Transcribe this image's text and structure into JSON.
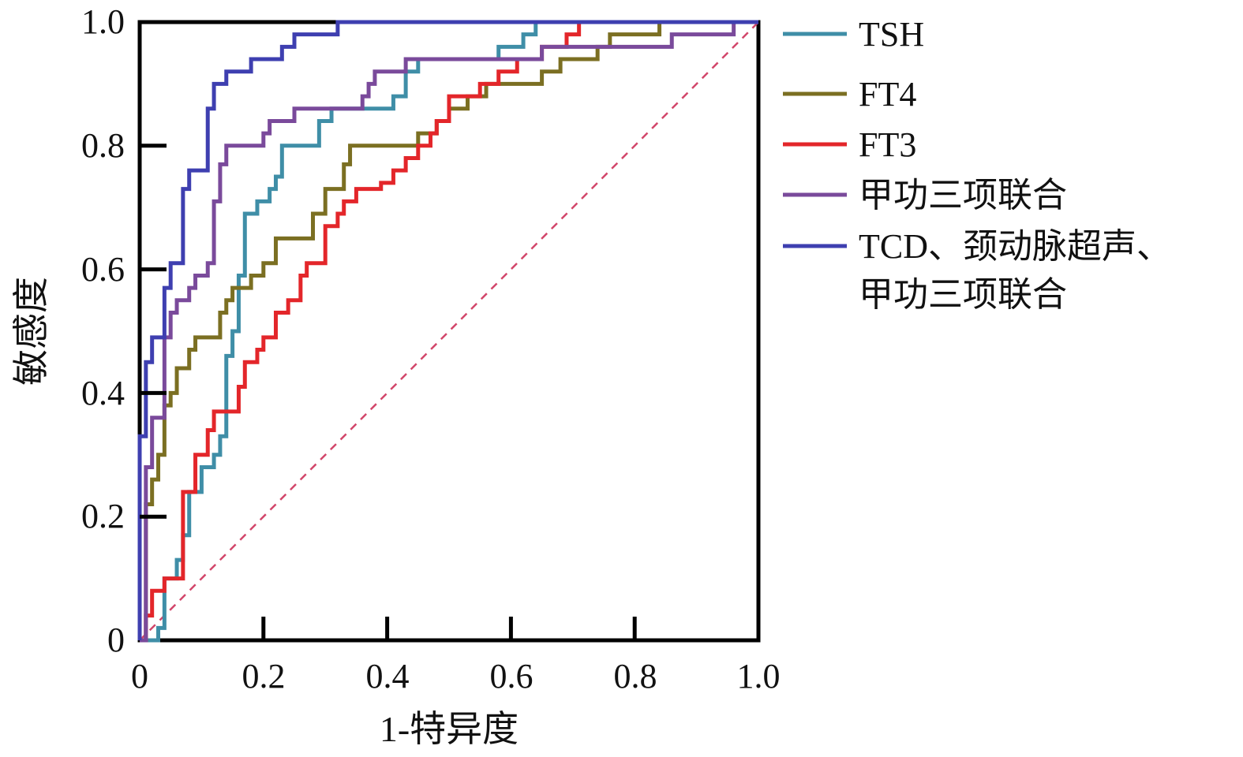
{
  "chart_data": {
    "type": "line",
    "xlabel": "1-特异度",
    "ylabel": "敏感度",
    "xlim": [
      0,
      1.0
    ],
    "ylim": [
      0,
      1.0
    ],
    "x_ticks": [
      "0",
      "0.2",
      "0.4",
      "0.6",
      "0.8",
      "1.0"
    ],
    "y_ticks": [
      "0",
      "0.2",
      "0.4",
      "0.6",
      "0.8",
      "1.0"
    ],
    "grid": false,
    "legend_position": "right",
    "reference_line": {
      "points": [
        [
          0,
          0
        ],
        [
          1,
          1
        ]
      ],
      "style": "dashed",
      "color": "#d2476b"
    },
    "series": [
      {
        "name": "TSH",
        "color": "#3f8ea7",
        "points": [
          [
            0,
            0
          ],
          [
            0.03,
            0
          ],
          [
            0.03,
            0.02
          ],
          [
            0.04,
            0.02
          ],
          [
            0.04,
            0.1
          ],
          [
            0.06,
            0.1
          ],
          [
            0.06,
            0.13
          ],
          [
            0.07,
            0.13
          ],
          [
            0.07,
            0.17
          ],
          [
            0.08,
            0.17
          ],
          [
            0.08,
            0.24
          ],
          [
            0.1,
            0.24
          ],
          [
            0.1,
            0.28
          ],
          [
            0.12,
            0.28
          ],
          [
            0.12,
            0.3
          ],
          [
            0.13,
            0.3
          ],
          [
            0.13,
            0.33
          ],
          [
            0.14,
            0.33
          ],
          [
            0.14,
            0.46
          ],
          [
            0.15,
            0.46
          ],
          [
            0.15,
            0.5
          ],
          [
            0.16,
            0.5
          ],
          [
            0.16,
            0.59
          ],
          [
            0.17,
            0.59
          ],
          [
            0.17,
            0.69
          ],
          [
            0.19,
            0.69
          ],
          [
            0.19,
            0.71
          ],
          [
            0.21,
            0.71
          ],
          [
            0.21,
            0.73
          ],
          [
            0.22,
            0.73
          ],
          [
            0.22,
            0.75
          ],
          [
            0.23,
            0.75
          ],
          [
            0.23,
            0.8
          ],
          [
            0.29,
            0.8
          ],
          [
            0.29,
            0.84
          ],
          [
            0.31,
            0.84
          ],
          [
            0.31,
            0.86
          ],
          [
            0.41,
            0.86
          ],
          [
            0.41,
            0.88
          ],
          [
            0.43,
            0.88
          ],
          [
            0.43,
            0.92
          ],
          [
            0.45,
            0.92
          ],
          [
            0.45,
            0.94
          ],
          [
            0.58,
            0.94
          ],
          [
            0.58,
            0.96
          ],
          [
            0.62,
            0.96
          ],
          [
            0.62,
            0.98
          ],
          [
            0.64,
            0.98
          ],
          [
            0.64,
            1.0
          ],
          [
            1.0,
            1.0
          ]
        ]
      },
      {
        "name": "FT4",
        "color": "#7b6f22",
        "points": [
          [
            0,
            0
          ],
          [
            0.01,
            0
          ],
          [
            0.01,
            0.22
          ],
          [
            0.02,
            0.22
          ],
          [
            0.02,
            0.26
          ],
          [
            0.03,
            0.26
          ],
          [
            0.03,
            0.3
          ],
          [
            0.04,
            0.3
          ],
          [
            0.04,
            0.38
          ],
          [
            0.05,
            0.38
          ],
          [
            0.05,
            0.4
          ],
          [
            0.06,
            0.4
          ],
          [
            0.06,
            0.44
          ],
          [
            0.08,
            0.44
          ],
          [
            0.08,
            0.47
          ],
          [
            0.09,
            0.47
          ],
          [
            0.09,
            0.49
          ],
          [
            0.13,
            0.49
          ],
          [
            0.13,
            0.53
          ],
          [
            0.14,
            0.53
          ],
          [
            0.14,
            0.55
          ],
          [
            0.15,
            0.55
          ],
          [
            0.15,
            0.57
          ],
          [
            0.18,
            0.57
          ],
          [
            0.18,
            0.59
          ],
          [
            0.2,
            0.59
          ],
          [
            0.2,
            0.61
          ],
          [
            0.22,
            0.61
          ],
          [
            0.22,
            0.65
          ],
          [
            0.28,
            0.65
          ],
          [
            0.28,
            0.69
          ],
          [
            0.3,
            0.69
          ],
          [
            0.3,
            0.73
          ],
          [
            0.33,
            0.73
          ],
          [
            0.33,
            0.77
          ],
          [
            0.34,
            0.77
          ],
          [
            0.34,
            0.8
          ],
          [
            0.45,
            0.8
          ],
          [
            0.45,
            0.82
          ],
          [
            0.48,
            0.82
          ],
          [
            0.48,
            0.84
          ],
          [
            0.5,
            0.84
          ],
          [
            0.5,
            0.86
          ],
          [
            0.53,
            0.86
          ],
          [
            0.53,
            0.88
          ],
          [
            0.56,
            0.88
          ],
          [
            0.56,
            0.9
          ],
          [
            0.65,
            0.9
          ],
          [
            0.65,
            0.92
          ],
          [
            0.68,
            0.92
          ],
          [
            0.68,
            0.94
          ],
          [
            0.74,
            0.94
          ],
          [
            0.74,
            0.96
          ],
          [
            0.76,
            0.96
          ],
          [
            0.76,
            0.98
          ],
          [
            0.84,
            0.98
          ],
          [
            0.84,
            1.0
          ],
          [
            1.0,
            1.0
          ]
        ]
      },
      {
        "name": "FT3",
        "color": "#e3262a",
        "points": [
          [
            0,
            0
          ],
          [
            0.01,
            0
          ],
          [
            0.01,
            0.04
          ],
          [
            0.02,
            0.04
          ],
          [
            0.02,
            0.08
          ],
          [
            0.04,
            0.08
          ],
          [
            0.04,
            0.1
          ],
          [
            0.07,
            0.1
          ],
          [
            0.07,
            0.24
          ],
          [
            0.09,
            0.24
          ],
          [
            0.09,
            0.3
          ],
          [
            0.11,
            0.3
          ],
          [
            0.11,
            0.34
          ],
          [
            0.12,
            0.34
          ],
          [
            0.12,
            0.37
          ],
          [
            0.16,
            0.37
          ],
          [
            0.16,
            0.41
          ],
          [
            0.17,
            0.41
          ],
          [
            0.17,
            0.45
          ],
          [
            0.19,
            0.45
          ],
          [
            0.19,
            0.47
          ],
          [
            0.2,
            0.47
          ],
          [
            0.2,
            0.49
          ],
          [
            0.22,
            0.49
          ],
          [
            0.22,
            0.53
          ],
          [
            0.24,
            0.53
          ],
          [
            0.24,
            0.55
          ],
          [
            0.26,
            0.55
          ],
          [
            0.26,
            0.59
          ],
          [
            0.27,
            0.59
          ],
          [
            0.27,
            0.61
          ],
          [
            0.3,
            0.61
          ],
          [
            0.3,
            0.67
          ],
          [
            0.32,
            0.67
          ],
          [
            0.32,
            0.69
          ],
          [
            0.33,
            0.69
          ],
          [
            0.33,
            0.71
          ],
          [
            0.35,
            0.71
          ],
          [
            0.35,
            0.73
          ],
          [
            0.39,
            0.73
          ],
          [
            0.39,
            0.74
          ],
          [
            0.41,
            0.74
          ],
          [
            0.41,
            0.76
          ],
          [
            0.43,
            0.76
          ],
          [
            0.43,
            0.78
          ],
          [
            0.45,
            0.78
          ],
          [
            0.45,
            0.8
          ],
          [
            0.47,
            0.8
          ],
          [
            0.47,
            0.82
          ],
          [
            0.48,
            0.82
          ],
          [
            0.48,
            0.84
          ],
          [
            0.5,
            0.84
          ],
          [
            0.5,
            0.88
          ],
          [
            0.55,
            0.88
          ],
          [
            0.55,
            0.9
          ],
          [
            0.58,
            0.9
          ],
          [
            0.58,
            0.92
          ],
          [
            0.61,
            0.92
          ],
          [
            0.61,
            0.94
          ],
          [
            0.65,
            0.94
          ],
          [
            0.65,
            0.96
          ],
          [
            0.69,
            0.96
          ],
          [
            0.69,
            0.98
          ],
          [
            0.71,
            0.98
          ],
          [
            0.71,
            1.0
          ],
          [
            1.0,
            1.0
          ]
        ]
      },
      {
        "name": "甲功三项联合",
        "color": "#7a4a9b",
        "points": [
          [
            0,
            0
          ],
          [
            0.01,
            0
          ],
          [
            0.01,
            0.28
          ],
          [
            0.02,
            0.28
          ],
          [
            0.02,
            0.36
          ],
          [
            0.04,
            0.36
          ],
          [
            0.04,
            0.49
          ],
          [
            0.05,
            0.49
          ],
          [
            0.05,
            0.53
          ],
          [
            0.06,
            0.53
          ],
          [
            0.06,
            0.55
          ],
          [
            0.08,
            0.55
          ],
          [
            0.08,
            0.57
          ],
          [
            0.09,
            0.57
          ],
          [
            0.09,
            0.59
          ],
          [
            0.11,
            0.59
          ],
          [
            0.11,
            0.61
          ],
          [
            0.12,
            0.61
          ],
          [
            0.12,
            0.71
          ],
          [
            0.13,
            0.71
          ],
          [
            0.13,
            0.77
          ],
          [
            0.14,
            0.77
          ],
          [
            0.14,
            0.8
          ],
          [
            0.2,
            0.8
          ],
          [
            0.2,
            0.82
          ],
          [
            0.21,
            0.82
          ],
          [
            0.21,
            0.84
          ],
          [
            0.25,
            0.84
          ],
          [
            0.25,
            0.86
          ],
          [
            0.36,
            0.86
          ],
          [
            0.36,
            0.88
          ],
          [
            0.37,
            0.88
          ],
          [
            0.37,
            0.9
          ],
          [
            0.38,
            0.9
          ],
          [
            0.38,
            0.92
          ],
          [
            0.43,
            0.92
          ],
          [
            0.43,
            0.94
          ],
          [
            0.65,
            0.94
          ],
          [
            0.65,
            0.96
          ],
          [
            0.86,
            0.96
          ],
          [
            0.86,
            0.98
          ],
          [
            0.96,
            0.98
          ],
          [
            0.96,
            1.0
          ],
          [
            1.0,
            1.0
          ]
        ]
      },
      {
        "name": "TCD、颈动脉超声、甲功三项联合",
        "color": "#3e3fb0",
        "points": [
          [
            0,
            0
          ],
          [
            0,
            0.33
          ],
          [
            0.01,
            0.33
          ],
          [
            0.01,
            0.45
          ],
          [
            0.02,
            0.45
          ],
          [
            0.02,
            0.49
          ],
          [
            0.04,
            0.49
          ],
          [
            0.04,
            0.57
          ],
          [
            0.05,
            0.57
          ],
          [
            0.05,
            0.61
          ],
          [
            0.07,
            0.61
          ],
          [
            0.07,
            0.73
          ],
          [
            0.08,
            0.73
          ],
          [
            0.08,
            0.76
          ],
          [
            0.11,
            0.76
          ],
          [
            0.11,
            0.86
          ],
          [
            0.12,
            0.86
          ],
          [
            0.12,
            0.9
          ],
          [
            0.14,
            0.9
          ],
          [
            0.14,
            0.92
          ],
          [
            0.18,
            0.92
          ],
          [
            0.18,
            0.94
          ],
          [
            0.23,
            0.94
          ],
          [
            0.23,
            0.96
          ],
          [
            0.25,
            0.96
          ],
          [
            0.25,
            0.98
          ],
          [
            0.32,
            0.98
          ],
          [
            0.32,
            1.0
          ],
          [
            1.0,
            1.0
          ]
        ]
      }
    ]
  },
  "legend": {
    "items": [
      {
        "label": "TSH"
      },
      {
        "label": "FT4"
      },
      {
        "label": "FT3"
      },
      {
        "label": "甲功三项联合"
      },
      {
        "label_line1": "TCD、颈动脉超声、",
        "label_line2": "甲功三项联合"
      }
    ]
  }
}
